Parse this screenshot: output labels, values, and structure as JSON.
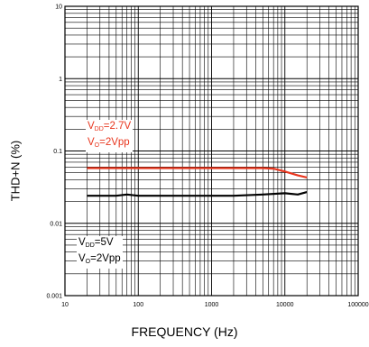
{
  "chart_data": {
    "type": "line",
    "xlabel": "FREQUENCY (Hz)",
    "ylabel": "THD+N (%)",
    "xscale": "log",
    "yscale": "log",
    "xlim": [
      10,
      100000
    ],
    "ylim": [
      0.001,
      10
    ],
    "x_ticks": [
      "10",
      "100",
      "1000",
      "10000",
      "100000"
    ],
    "y_ticks": [
      "10",
      "1",
      "0.1",
      "0.01",
      "0.001"
    ],
    "grid": true,
    "series": [
      {
        "color": "#e8361e",
        "x": [
          20,
          30,
          50,
          100,
          200,
          500,
          1000,
          2000,
          5000,
          7000,
          10000,
          15000,
          20000
        ],
        "y": [
          0.058,
          0.058,
          0.058,
          0.058,
          0.058,
          0.058,
          0.058,
          0.058,
          0.058,
          0.057,
          0.052,
          0.046,
          0.043
        ]
      },
      {
        "color": "#000000",
        "x": [
          20,
          30,
          50,
          70,
          100,
          200,
          300,
          500,
          1000,
          2000,
          5000,
          10000,
          15000,
          20000
        ],
        "y": [
          0.024,
          0.024,
          0.024,
          0.025,
          0.024,
          0.024,
          0.024,
          0.024,
          0.024,
          0.024,
          0.025,
          0.026,
          0.025,
          0.027
        ]
      }
    ],
    "annotations": {
      "red": {
        "line1_main": "V",
        "line1_sub": "DD",
        "line1_rest": "=2.7V",
        "line2_main": "V",
        "line2_sub": "O",
        "line2_rest": "=2Vpp"
      },
      "black": {
        "line1_main": "V",
        "line1_sub": "DD",
        "line1_rest": "=5V",
        "line2_main": "V",
        "line2_sub": "O",
        "line2_rest": "=2Vpp"
      }
    }
  }
}
